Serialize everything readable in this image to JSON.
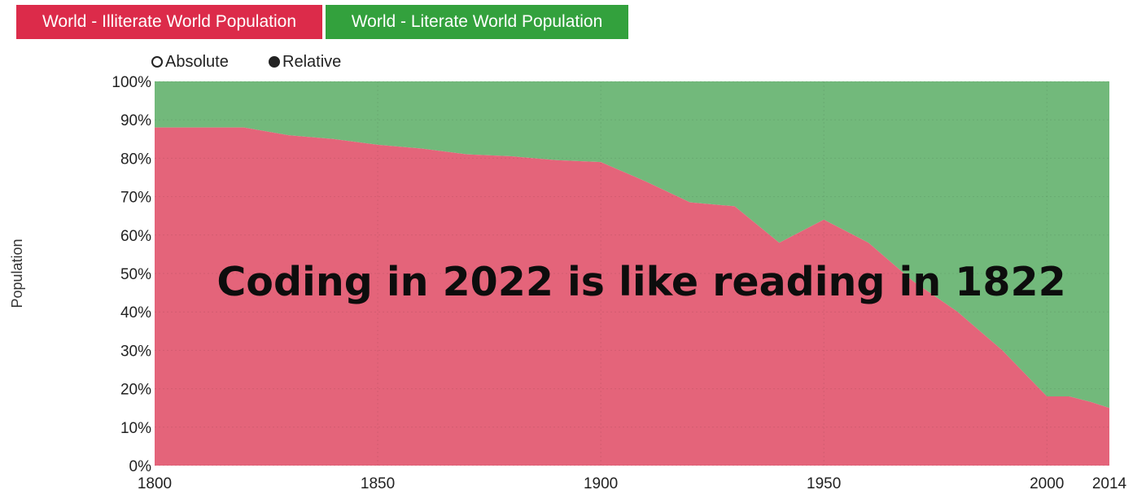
{
  "legend": {
    "illiterate_label": "World - Illiterate World Population",
    "literate_label": "World - Literate World Population"
  },
  "mode": {
    "absolute_label": "Absolute",
    "relative_label": "Relative",
    "selected": "Relative"
  },
  "overlay_text": "Coding in 2022 is like reading in 1822",
  "colors": {
    "illiterate": "#e4647a",
    "literate": "#72b97b",
    "illiterate_button": "#dc2b4a",
    "literate_button": "#33a13d"
  },
  "chart_data": {
    "type": "area",
    "stacked": true,
    "normalized": true,
    "ylabel": "Population",
    "xlabel": "",
    "xlim": [
      1800,
      2014
    ],
    "ylim": [
      0,
      100
    ],
    "x_ticks": [
      1800,
      1850,
      1900,
      1950,
      2000,
      2014
    ],
    "y_ticks": [
      "0%",
      "10%",
      "20%",
      "30%",
      "40%",
      "50%",
      "60%",
      "70%",
      "80%",
      "90%",
      "100%"
    ],
    "grid": true,
    "series": [
      {
        "name": "World - Illiterate World Population",
        "x": [
          1800,
          1820,
          1830,
          1840,
          1850,
          1860,
          1870,
          1880,
          1890,
          1900,
          1910,
          1920,
          1930,
          1940,
          1950,
          1960,
          1970,
          1980,
          1990,
          2000,
          2005,
          2010,
          2014
        ],
        "values": [
          88,
          88,
          86,
          85,
          83.5,
          82.5,
          81,
          80.5,
          79.5,
          79,
          74,
          68.5,
          67.5,
          58,
          64,
          58,
          48,
          40,
          30,
          18,
          18,
          16.5,
          15
        ]
      },
      {
        "name": "World - Literate World Population",
        "x": [
          1800,
          1820,
          1830,
          1840,
          1850,
          1860,
          1870,
          1880,
          1890,
          1900,
          1910,
          1920,
          1930,
          1940,
          1950,
          1960,
          1970,
          1980,
          1990,
          2000,
          2005,
          2010,
          2014
        ],
        "values": [
          12,
          12,
          14,
          15,
          16.5,
          17.5,
          19,
          19.5,
          20.5,
          21,
          26,
          31.5,
          32.5,
          42,
          36,
          42,
          52,
          60,
          70,
          82,
          82,
          83.5,
          85
        ]
      }
    ]
  }
}
